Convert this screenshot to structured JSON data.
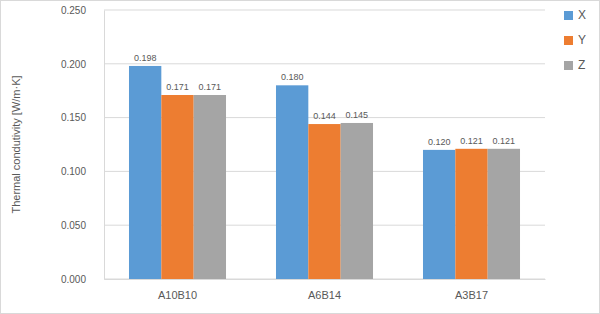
{
  "chart_data": {
    "type": "bar",
    "ylabel": "Thermal condutivity [W/m·K]",
    "categories": [
      "A10B10",
      "A6B14",
      "A3B17"
    ],
    "series": [
      {
        "name": "X",
        "color": "#5b9bd5",
        "values": [
          0.198,
          0.18,
          0.12
        ],
        "value_labels": [
          "0.198",
          "0.180",
          "0.120"
        ]
      },
      {
        "name": "Y",
        "color": "#ed7d31",
        "values": [
          0.171,
          0.144,
          0.121
        ],
        "value_labels": [
          "0.171",
          "0.144",
          "0.121"
        ]
      },
      {
        "name": "Z",
        "color": "#a5a5a5",
        "values": [
          0.171,
          0.145,
          0.121
        ],
        "value_labels": [
          "0.171",
          "0.145",
          "0.121"
        ]
      }
    ],
    "ylim": [
      0,
      0.25
    ],
    "yticks": [
      {
        "value": 0,
        "label": "0.000"
      },
      {
        "value": 0.05,
        "label": "0.050"
      },
      {
        "value": 0.1,
        "label": "0.100"
      },
      {
        "value": 0.15,
        "label": "0.150"
      },
      {
        "value": 0.2,
        "label": "0.200"
      },
      {
        "value": 0.25,
        "label": "0.250"
      }
    ],
    "grid": true,
    "legend": "right",
    "data_labels": true
  }
}
